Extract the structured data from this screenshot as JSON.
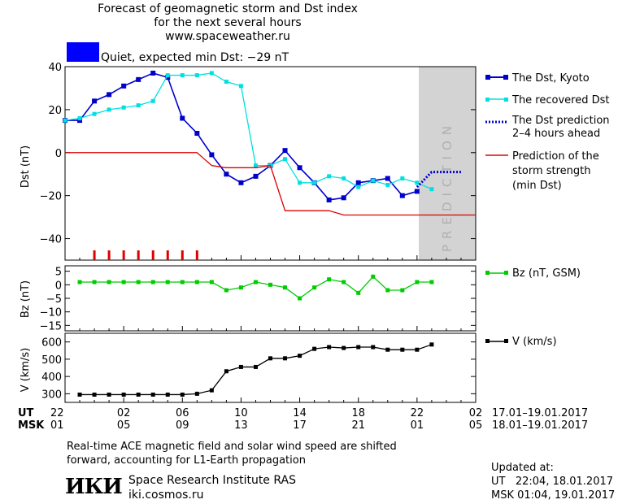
{
  "header": {
    "title_line1": "Forecast of geomagnetic storm and Dst index",
    "title_line2": "for the next several hours",
    "site": "www.spaceweather.ru",
    "status_text": "Quiet, expected min Dst: −29 nT",
    "status_color": "#0000ff"
  },
  "prediction_label": "PREDICTION",
  "time_axis": {
    "ut_label": "UT",
    "msk_label": "MSK",
    "ut_ticks": [
      "22",
      "02",
      "06",
      "10",
      "14",
      "18",
      "22",
      "02"
    ],
    "msk_ticks": [
      "01",
      "05",
      "09",
      "13",
      "17",
      "21",
      "01",
      "05"
    ],
    "ut_range_label": "17.01–19.01.2017",
    "msk_range_label": "18.01–19.01.2017"
  },
  "legend": {
    "dst_kyoto": "The Dst, Kyoto",
    "dst_recovered": "The recovered Dst",
    "dst_prediction_line1": "The Dst prediction",
    "dst_prediction_line2": "2–4 hours ahead",
    "storm_line1": "Prediction of the",
    "storm_line2": "storm strength",
    "storm_line3": "(min Dst)",
    "bz": "Bz (nT, GSM)",
    "v": "V (km/s)"
  },
  "footer": {
    "note_line1": "Real-time ACE magnetic field and solar wind speed are shifted",
    "note_line2": "forward, accounting for L1-Earth propagation",
    "institute_logo": "ИКИ",
    "institute_name": "Space Research Institute RAS",
    "institute_site": "iki.cosmos.ru",
    "updated_label": "Updated at:",
    "updated_ut": "UT   22:04, 18.01.2017",
    "updated_msk": "MSK 01:04, 19.01.2017"
  },
  "chart_data": [
    {
      "type": "line",
      "ylabel": "Dst (nT)",
      "ylim": [
        -50,
        40
      ],
      "yticks": [
        -40,
        -20,
        0,
        20,
        40
      ],
      "x_unit": "hours since 22 UT, 17.01.2017",
      "xlim": [
        0,
        28
      ],
      "prediction_region": [
        24,
        28
      ],
      "series": [
        {
          "name": "The Dst, Kyoto",
          "color": "#0000cc",
          "marker": "square",
          "x": [
            0,
            1,
            2,
            3,
            4,
            5,
            6,
            7,
            8,
            9,
            10,
            11,
            12,
            13,
            14,
            15,
            16,
            17,
            18,
            19,
            20,
            21,
            22,
            23,
            24
          ],
          "values": [
            15,
            15,
            24,
            27,
            31,
            34,
            37,
            35,
            16,
            9,
            -1,
            -10,
            -14,
            -11,
            -6,
            1,
            -7,
            -14,
            -22,
            -21,
            -14,
            -13,
            -12,
            -20,
            -18
          ]
        },
        {
          "name": "The recovered Dst",
          "color": "#00e0e0",
          "marker": "square",
          "x": [
            0,
            1,
            2,
            3,
            4,
            5,
            6,
            7,
            8,
            9,
            10,
            11,
            12,
            13,
            14,
            15,
            16,
            17,
            18,
            19,
            20,
            21,
            22,
            23,
            24,
            25
          ],
          "values": [
            15,
            16,
            18,
            20,
            21,
            22,
            24,
            36,
            36,
            36,
            37,
            33,
            31,
            -6,
            -6,
            -3,
            -14,
            -14,
            -11,
            -12,
            -16,
            -13,
            -15,
            -12,
            -14,
            -17
          ]
        },
        {
          "name": "The Dst prediction 2–4 hours ahead",
          "color": "#0000cc",
          "style": "dotted",
          "x": [
            24,
            25,
            26,
            27
          ],
          "values": [
            -16,
            -9,
            -9,
            -9
          ]
        },
        {
          "name": "Prediction of the storm strength (min Dst)",
          "color": "#dd0000",
          "style": "step",
          "x": [
            0,
            9,
            10,
            11,
            12,
            13,
            14,
            15,
            16,
            17,
            18,
            19,
            20,
            28
          ],
          "values": [
            0,
            0,
            -6,
            -7,
            -7,
            -7,
            -6,
            -27,
            -27,
            -27,
            -27,
            -29,
            -29,
            -29
          ]
        }
      ],
      "storm_ticks_x": [
        2,
        3,
        4,
        5,
        6,
        7,
        8,
        9
      ]
    },
    {
      "type": "line",
      "ylabel": "Bz (nT)",
      "ylim": [
        -17,
        7
      ],
      "yticks": [
        5,
        0,
        -5,
        -10,
        -15
      ],
      "series": [
        {
          "name": "Bz (nT, GSM)",
          "color": "#00cc00",
          "marker": "square",
          "x": [
            1,
            2,
            3,
            4,
            5,
            6,
            7,
            8,
            9,
            10,
            11,
            12,
            13,
            14,
            15,
            16,
            17,
            18,
            19,
            20,
            21,
            22,
            23,
            24,
            25
          ],
          "values": [
            1,
            1,
            1,
            1,
            1,
            1,
            1,
            1,
            1,
            1,
            -2,
            -1,
            1,
            0,
            -1,
            -5,
            -1,
            2,
            1,
            -3,
            3,
            -2,
            -2,
            1,
            1
          ]
        }
      ]
    },
    {
      "type": "line",
      "ylabel": "V (km/s)",
      "ylim": [
        250,
        650
      ],
      "yticks": [
        300,
        400,
        500,
        600
      ],
      "series": [
        {
          "name": "V (km/s)",
          "color": "#000000",
          "marker": "square",
          "x": [
            1,
            2,
            3,
            4,
            5,
            6,
            7,
            8,
            9,
            10,
            11,
            12,
            13,
            14,
            15,
            16,
            17,
            18,
            19,
            20,
            21,
            22,
            23,
            24,
            25
          ],
          "values": [
            295,
            295,
            295,
            295,
            295,
            295,
            295,
            295,
            300,
            320,
            430,
            455,
            455,
            505,
            505,
            520,
            560,
            570,
            565,
            570,
            570,
            555,
            555,
            555,
            585
          ]
        }
      ]
    }
  ]
}
